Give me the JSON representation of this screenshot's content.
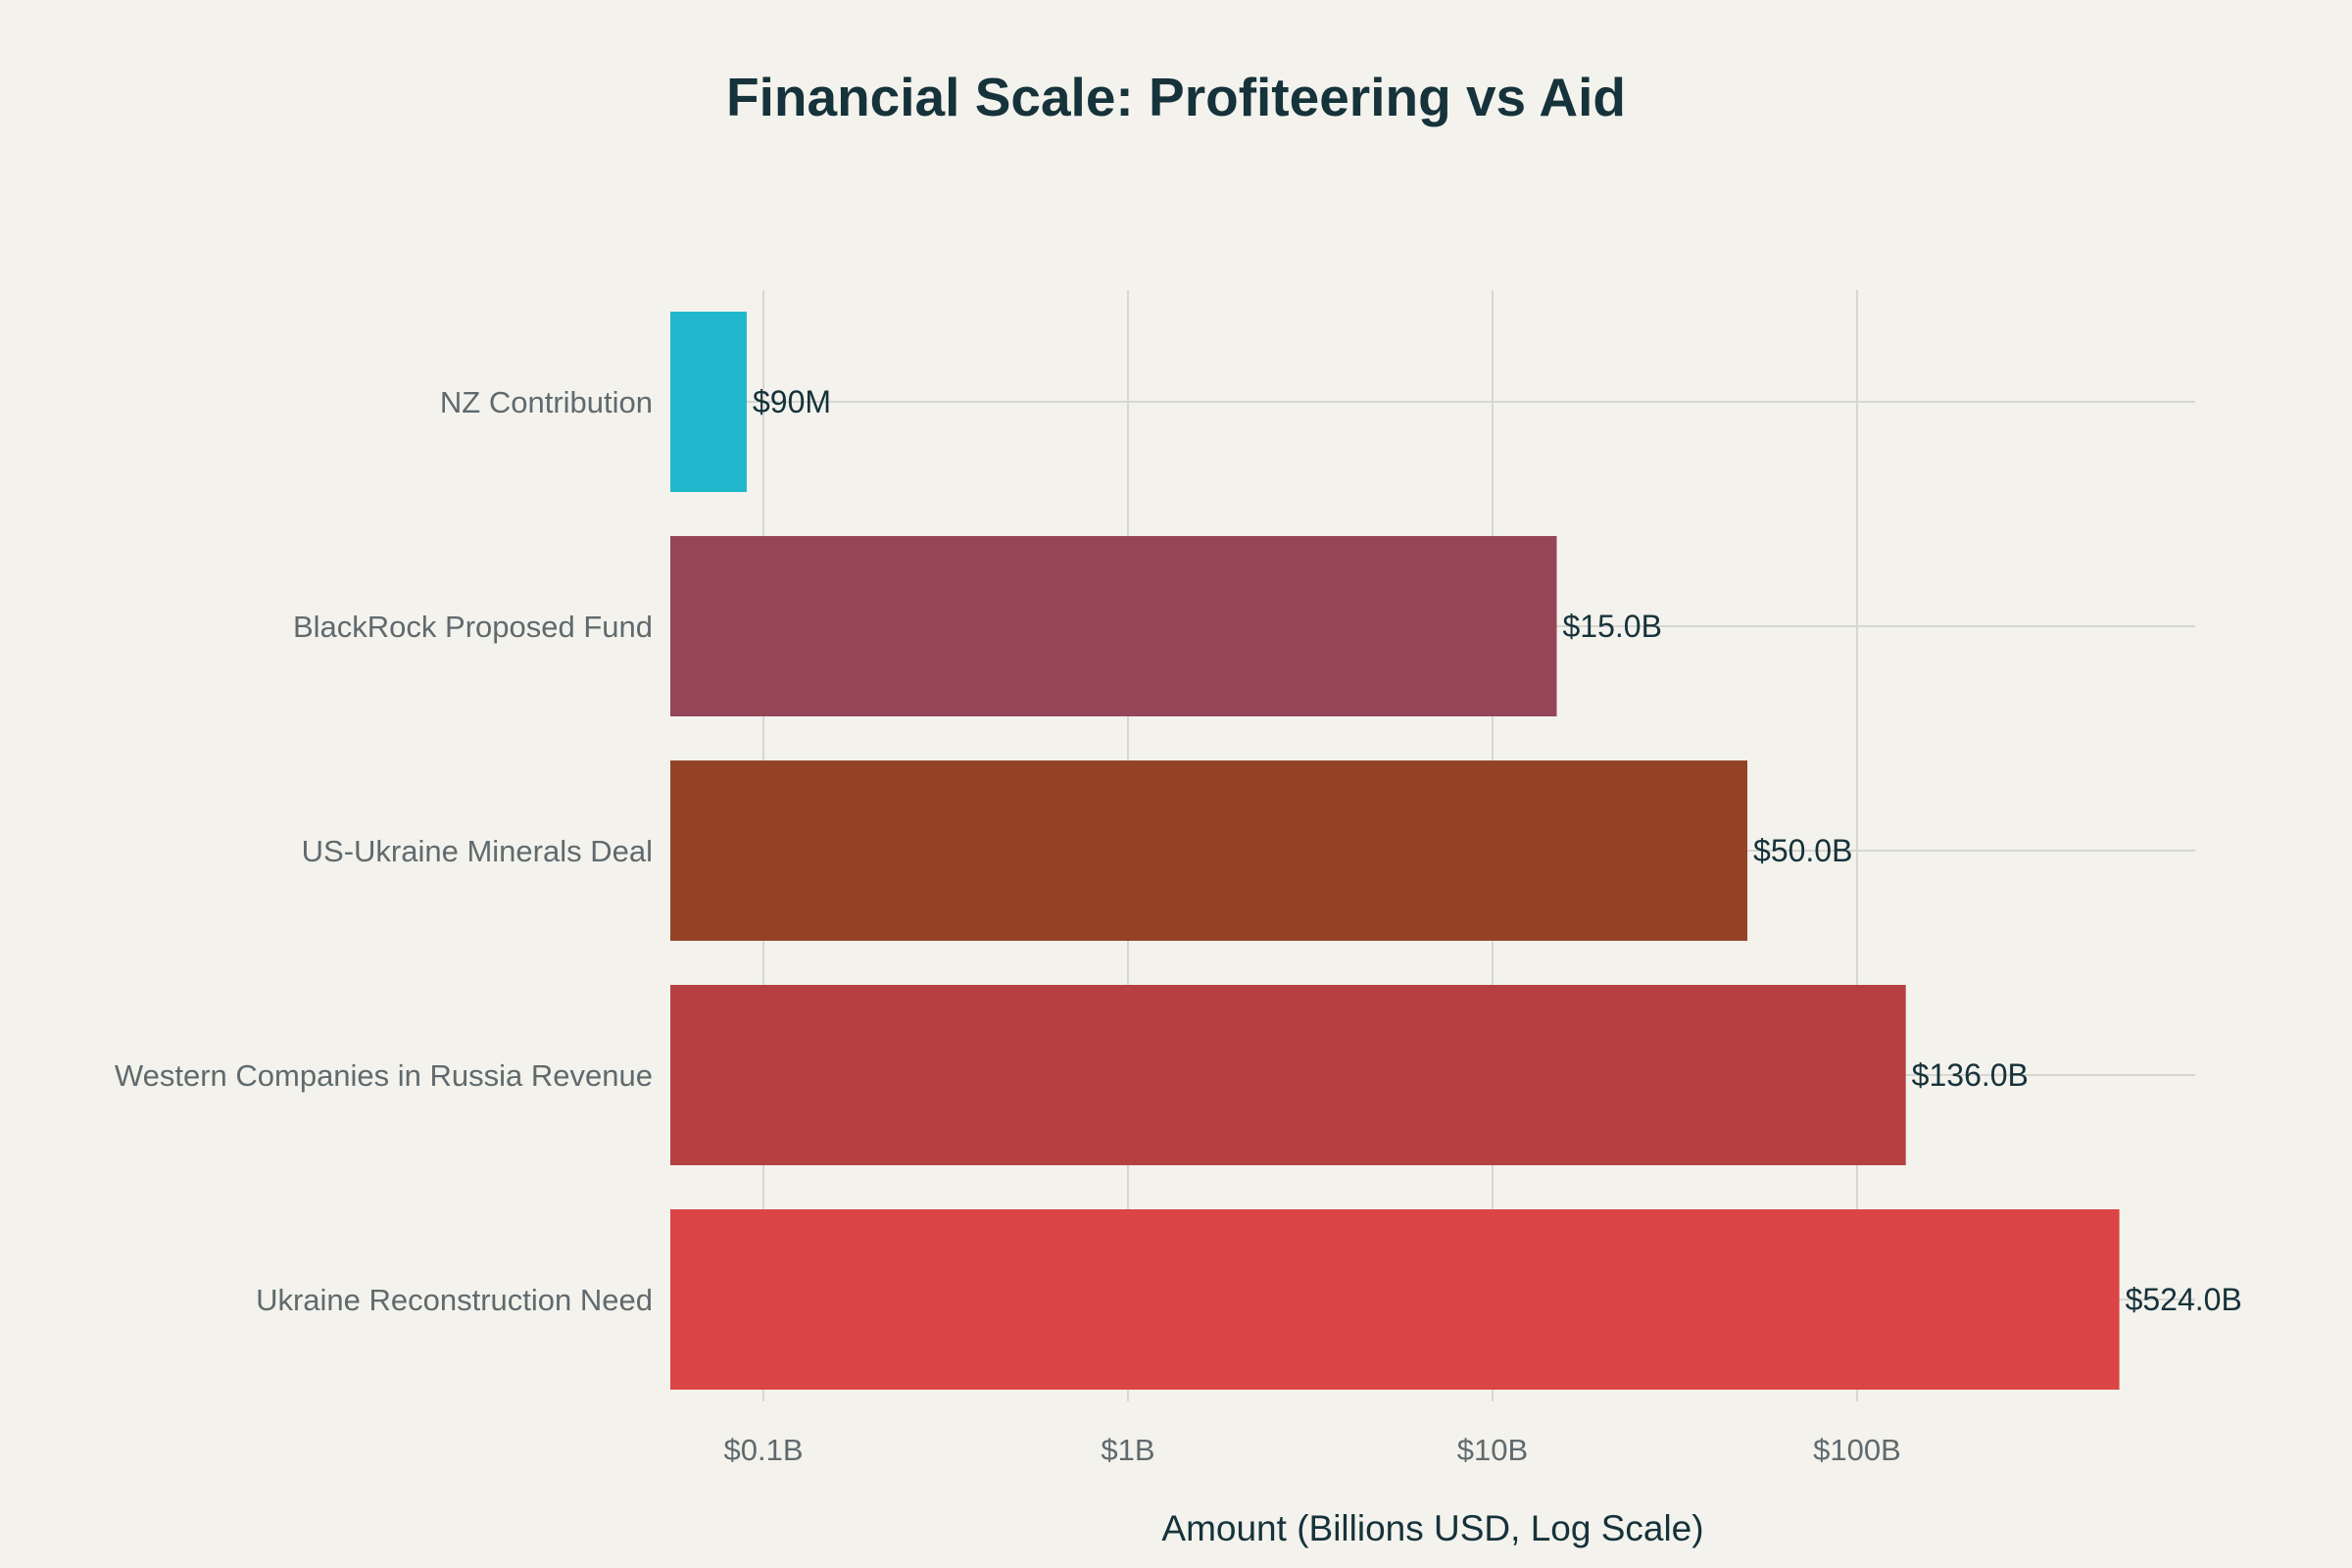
{
  "chart_data": {
    "type": "bar",
    "orientation": "horizontal",
    "title": "Financial Scale: Profiteering vs Aid",
    "xlabel": "Amount (Billions USD, Log Scale)",
    "ylabel": "",
    "x_scale": "log",
    "xlim": [
      0.06,
      1000
    ],
    "grid": true,
    "categories": [
      "NZ Contribution",
      "BlackRock Proposed Fund",
      "US-Ukraine Minerals Deal",
      "Western Companies in Russia Revenue",
      "Ukraine Reconstruction Need"
    ],
    "values": [
      0.09,
      15.0,
      50.0,
      136.0,
      524.0
    ],
    "value_labels": [
      "$90M",
      "$15.0B",
      "$50.0B",
      "$136.0B",
      "$524.0B"
    ],
    "colors": [
      "#21b8cd",
      "#944556",
      "#944326",
      "#b5403f",
      "#db4545"
    ],
    "x_ticks": [
      {
        "value": 0.1,
        "label": "$0.1B"
      },
      {
        "value": 1,
        "label": "$1B"
      },
      {
        "value": 10,
        "label": "$10B"
      },
      {
        "value": 100,
        "label": "$100B"
      }
    ]
  }
}
